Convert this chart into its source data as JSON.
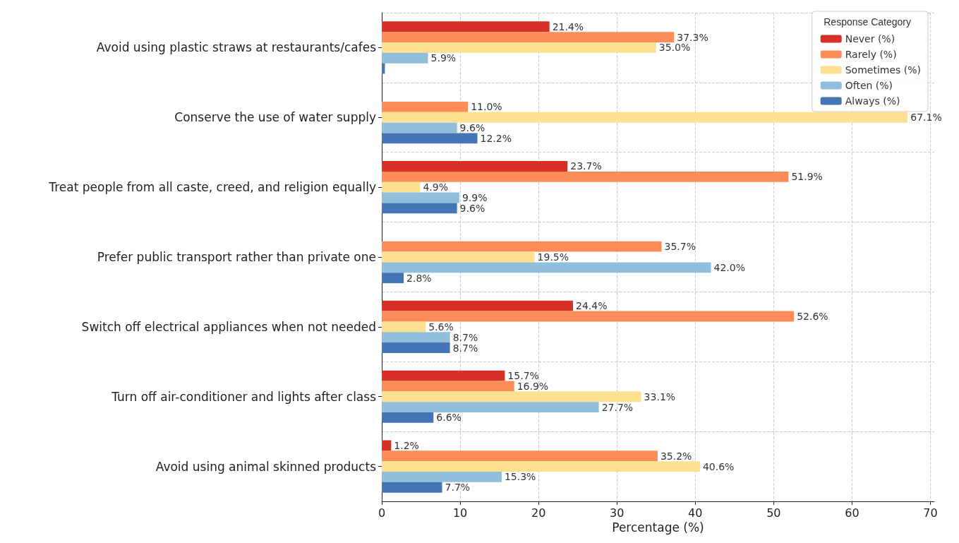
{
  "chart_data": {
    "type": "bar",
    "orientation": "horizontal",
    "xlabel": "Percentage (%)",
    "legend_title": "Response Category",
    "legend": "top right",
    "grid": true,
    "categories": [
      "Avoid using plastic straws at restaurants/cafes",
      "Conserve the use of water supply",
      "Treat people from all caste, creed, and religion equally",
      "Prefer public transport rather than private one",
      "Switch off electrical appliances when not needed",
      "Turn off air-conditioner and lights after class",
      "Avoid using animal skinned products"
    ],
    "xlim": [
      0,
      70.5
    ],
    "xticks": [
      0,
      10,
      20,
      30,
      40,
      50,
      60,
      70
    ],
    "series": [
      {
        "name": "Never (%)",
        "color": "#d73027",
        "values": [
          21.4,
          null,
          23.7,
          null,
          24.4,
          15.7,
          1.2
        ],
        "value_labels": [
          "21.4%",
          null,
          "23.7%",
          null,
          "24.4%",
          "15.7%",
          "1.2%"
        ]
      },
      {
        "name": "Rarely (%)",
        "color": "#fc8d59",
        "values": [
          37.3,
          11.0,
          51.9,
          35.7,
          52.6,
          16.9,
          35.2
        ],
        "value_labels": [
          "37.3%",
          "11.0%",
          "51.9%",
          "35.7%",
          "52.6%",
          "16.9%",
          "35.2%"
        ]
      },
      {
        "name": "Sometimes (%)",
        "color": "#fee090",
        "values": [
          35.0,
          67.1,
          4.9,
          19.5,
          5.6,
          33.1,
          40.6
        ],
        "value_labels": [
          "35.0%",
          "67.1%",
          "4.9%",
          "19.5%",
          "5.6%",
          "33.1%",
          "40.6%"
        ]
      },
      {
        "name": "Often (%)",
        "color": "#91bfdb",
        "values": [
          5.9,
          9.6,
          9.9,
          42.0,
          8.7,
          27.7,
          15.3
        ],
        "value_labels": [
          "5.9%",
          "9.6%",
          "9.9%",
          "42.0%",
          "8.7%",
          "27.7%",
          "15.3%"
        ]
      },
      {
        "name": "Always (%)",
        "color": "#4575b4",
        "values": [
          0.4,
          12.2,
          9.6,
          2.8,
          8.7,
          6.6,
          7.7
        ],
        "value_labels": [
          null,
          "12.2%",
          "9.6%",
          "2.8%",
          "8.7%",
          "6.6%",
          "7.7%"
        ]
      }
    ]
  }
}
